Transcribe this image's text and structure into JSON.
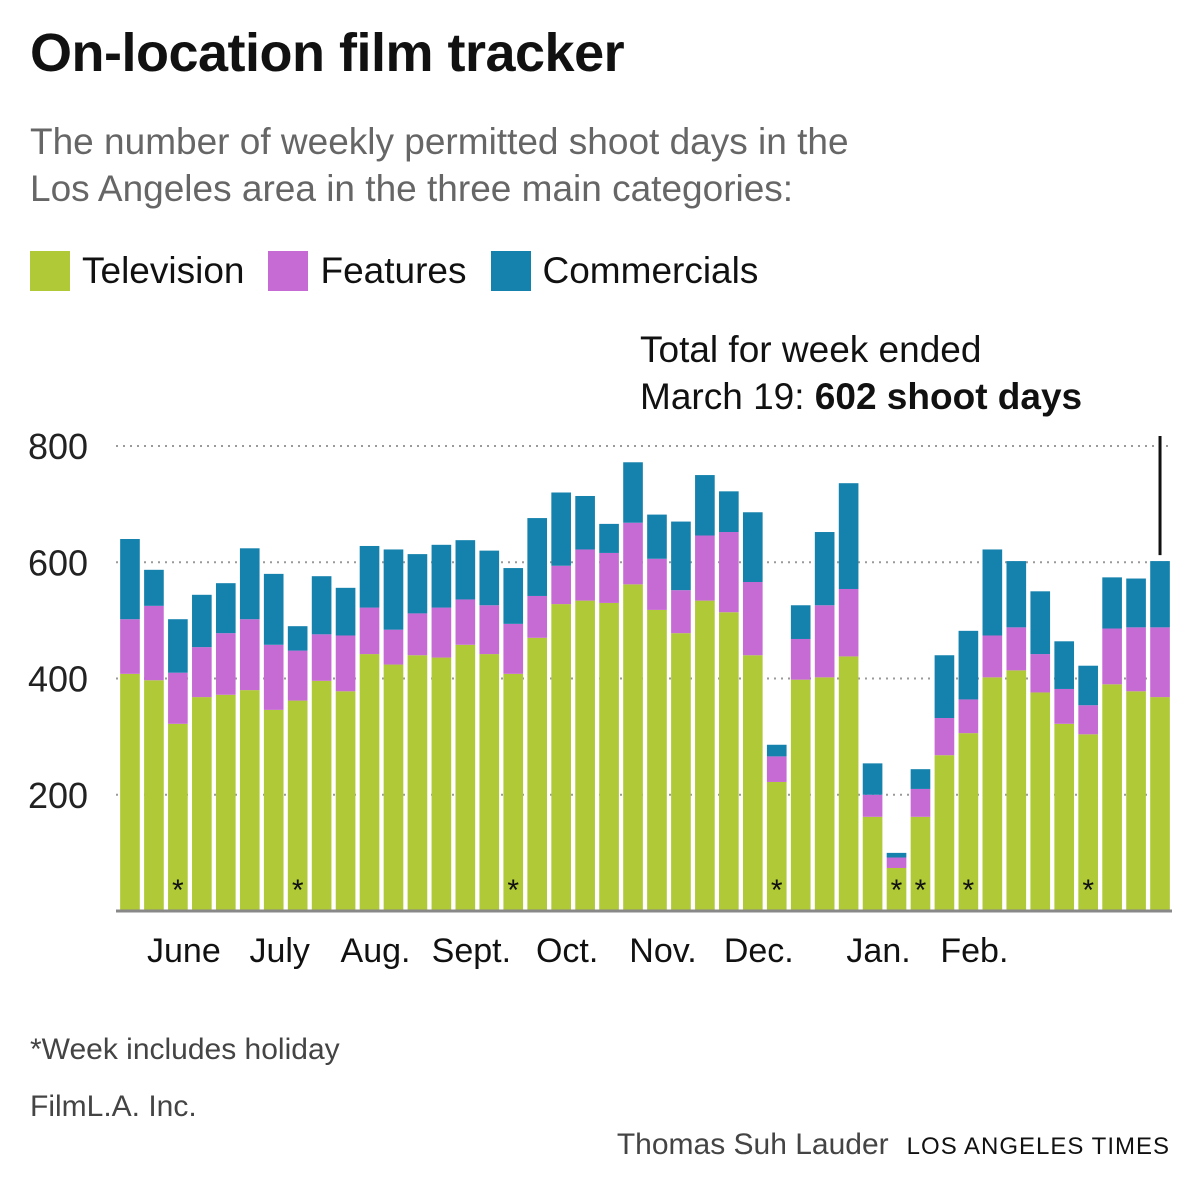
{
  "title": "On-location film tracker",
  "subtitle": [
    "The number of weekly permitted shoot days in the",
    "Los Angeles area in the three main categories:"
  ],
  "annotation": {
    "line1": "Total for week ended",
    "line2_prefix": "March 19: ",
    "line2_bold": "602 shoot days"
  },
  "footnote": "*Week includes holiday",
  "source": "FilmL.A. Inc.",
  "credit": {
    "author": "Thomas Suh Lauder",
    "publication": "LOS ANGELES TIMES"
  },
  "colors": {
    "television": "#afc937",
    "features": "#c66bd3",
    "commercials": "#1582ad",
    "grid": "#9a9a9a",
    "axis": "#888888"
  },
  "chart_data": {
    "type": "bar",
    "stacked": true,
    "ylim": [
      0,
      800
    ],
    "yticks": [
      200,
      400,
      600,
      800
    ],
    "grid": true,
    "legend_placement": "top-left",
    "xticks": [
      {
        "label": "June",
        "index": 2
      },
      {
        "label": "July",
        "index": 6
      },
      {
        "label": "Aug.",
        "index": 10
      },
      {
        "label": "Sept.",
        "index": 14
      },
      {
        "label": "Oct.",
        "index": 18
      },
      {
        "label": "Nov.",
        "index": 22
      },
      {
        "label": "Dec.",
        "index": 26
      },
      {
        "label": "Jan.",
        "index": 31
      },
      {
        "label": "Feb.",
        "index": 35
      }
    ],
    "holiday_marker": "*",
    "holiday_weeks": [
      2,
      7,
      16,
      27,
      32,
      33,
      35,
      40
    ],
    "series": [
      {
        "name": "Television",
        "values": [
          408,
          397,
          322,
          368,
          372,
          380,
          346,
          362,
          396,
          378,
          442,
          424,
          440,
          436,
          458,
          442,
          408,
          470,
          528,
          534,
          530,
          562,
          518,
          478,
          534,
          514,
          440,
          222,
          398,
          402,
          438,
          162,
          74,
          162,
          268,
          306,
          402,
          414,
          376,
          322,
          304,
          390,
          378,
          368
        ]
      },
      {
        "name": "Features",
        "values": [
          94,
          128,
          88,
          86,
          106,
          122,
          112,
          86,
          80,
          96,
          80,
          60,
          72,
          86,
          78,
          84,
          86,
          72,
          66,
          88,
          86,
          106,
          88,
          74,
          112,
          138,
          126,
          44,
          70,
          124,
          116,
          38,
          18,
          48,
          64,
          58,
          72,
          74,
          66,
          60,
          50,
          96,
          110,
          120
        ]
      },
      {
        "name": "Commercials",
        "values": [
          138,
          62,
          92,
          90,
          86,
          122,
          122,
          42,
          100,
          82,
          106,
          138,
          102,
          108,
          102,
          94,
          96,
          134,
          126,
          92,
          50,
          104,
          76,
          118,
          104,
          70,
          120,
          20,
          58,
          126,
          182,
          54,
          8,
          34,
          108,
          118,
          148,
          114,
          108,
          82,
          68,
          88,
          84,
          114
        ]
      }
    ]
  }
}
